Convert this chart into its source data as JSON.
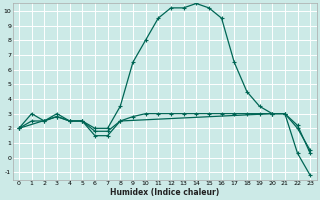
{
  "xlabel": "Humidex (Indice chaleur)",
  "xlim": [
    -0.5,
    23.5
  ],
  "ylim": [
    -1.5,
    10.5
  ],
  "yticks": [
    -1,
    0,
    1,
    2,
    3,
    4,
    5,
    6,
    7,
    8,
    9,
    10
  ],
  "xticks": [
    0,
    1,
    2,
    3,
    4,
    5,
    6,
    7,
    8,
    9,
    10,
    11,
    12,
    13,
    14,
    15,
    16,
    17,
    18,
    19,
    20,
    21,
    22,
    23
  ],
  "background_color": "#cceae7",
  "grid_color": "#ffffff",
  "line_color": "#006655",
  "line_width": 0.9,
  "marker": "+",
  "marker_size": 3.5,
  "series": {
    "curve1_x": [
      0,
      1,
      2,
      3,
      4,
      5,
      6,
      7,
      8,
      9,
      10,
      11,
      12,
      13,
      14,
      15,
      16,
      17,
      18,
      19,
      20,
      21,
      22,
      23
    ],
    "curve1_y": [
      2.0,
      3.0,
      2.5,
      3.0,
      2.5,
      2.5,
      2.0,
      2.0,
      3.5,
      6.5,
      8.0,
      9.5,
      10.2,
      10.2,
      10.5,
      10.2,
      9.5,
      6.5,
      4.5,
      3.5,
      3.0,
      3.0,
      2.0,
      0.5
    ],
    "curve2_x": [
      0,
      3,
      4,
      5,
      6,
      7,
      8,
      20,
      21,
      22,
      23
    ],
    "curve2_y": [
      2.0,
      2.8,
      2.5,
      2.5,
      1.5,
      1.5,
      2.5,
      3.0,
      3.0,
      0.3,
      -1.2
    ],
    "curve3_x": [
      0,
      1,
      2,
      3,
      4,
      5,
      6,
      7,
      8,
      9,
      10,
      11,
      12,
      13,
      14,
      15,
      16,
      17,
      18,
      19,
      20,
      21,
      22,
      23
    ],
    "curve3_y": [
      2.0,
      2.5,
      2.5,
      2.8,
      2.5,
      2.5,
      1.8,
      1.8,
      2.5,
      2.8,
      3.0,
      3.0,
      3.0,
      3.0,
      3.0,
      3.0,
      3.0,
      3.0,
      3.0,
      3.0,
      3.0,
      3.0,
      2.2,
      0.3
    ]
  }
}
